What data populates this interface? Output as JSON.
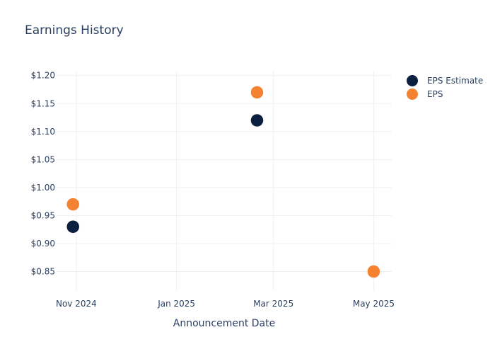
{
  "chart_data": {
    "type": "scatter",
    "title": "Earnings History",
    "xlabel": "Announcement Date",
    "ylabel": "",
    "x_ticks": [
      "Nov 2024",
      "Jan 2025",
      "Mar 2025",
      "May 2025"
    ],
    "y_ticks": [
      "$0.85",
      "$0.90",
      "$0.95",
      "$1.00",
      "$1.05",
      "$1.10",
      "$1.15",
      "$1.20"
    ],
    "ylim": [
      0.8165,
      1.2085
    ],
    "xlim": [
      "2024-10-20",
      "2025-05-12"
    ],
    "grid": true,
    "legend_position": "top-right",
    "series": [
      {
        "name": "EPS Estimate",
        "color": "#0b1f3f",
        "points": [
          {
            "date": "2024-10-30",
            "value": 0.93
          },
          {
            "date": "2025-02-19",
            "value": 1.12
          },
          {
            "date": "2025-05-01",
            "value": 0.85
          }
        ]
      },
      {
        "name": "EPS",
        "color": "#f58231",
        "points": [
          {
            "date": "2024-10-30",
            "value": 0.97
          },
          {
            "date": "2025-02-19",
            "value": 1.17
          },
          {
            "date": "2025-05-01",
            "value": 0.85
          }
        ]
      }
    ]
  }
}
